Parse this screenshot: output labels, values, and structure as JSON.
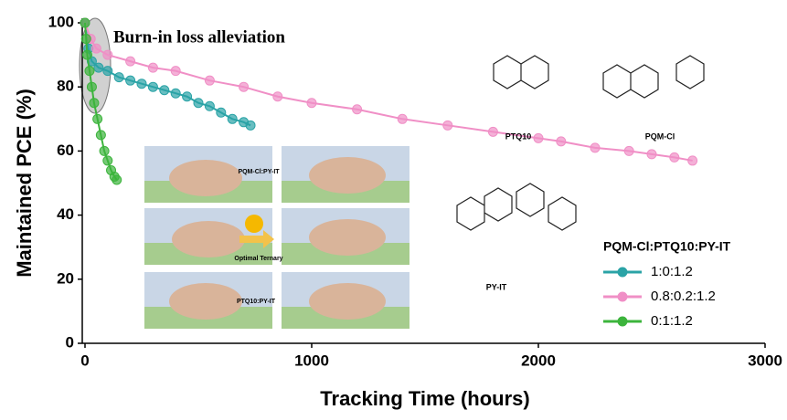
{
  "chart_data": {
    "type": "line",
    "xlabel": "Tracking Time (hours)",
    "ylabel": "Maintained PCE (%)",
    "xlim": [
      0,
      3000
    ],
    "xticks": [
      0,
      1000,
      2000,
      3000
    ],
    "ylim": [
      0,
      100
    ],
    "yticks": [
      0,
      20,
      40,
      60,
      80,
      100
    ],
    "legend_title": "PQM-Cl:PTQ10:PY-IT",
    "legend_position": "lower right",
    "annotations": [
      "Burn-in loss alleviation",
      "PQM-Cl:PY-IT",
      "Optimal Ternary",
      "PTQ10:PY-IT",
      "PTQ10",
      "PQM-Cl",
      "PY-IT"
    ],
    "series": [
      {
        "name": "1:0:1.2",
        "color": "#2aa3a6",
        "x": [
          0,
          15,
          30,
          60,
          100,
          150,
          200,
          250,
          300,
          350,
          400,
          450,
          500,
          550,
          600,
          650,
          700,
          730
        ],
        "values": [
          100,
          92,
          88,
          86,
          85,
          83,
          82,
          81,
          80,
          79,
          78,
          77,
          75,
          74,
          72,
          70,
          69,
          68
        ]
      },
      {
        "name": "0.8:0.2:1.2",
        "color": "#f08fc6",
        "x": [
          0,
          25,
          50,
          100,
          200,
          300,
          400,
          550,
          700,
          850,
          1000,
          1200,
          1400,
          1600,
          1800,
          2000,
          2100,
          2250,
          2400,
          2500,
          2600,
          2680
        ],
        "values": [
          100,
          95,
          92,
          90,
          88,
          86,
          85,
          82,
          80,
          77,
          75,
          73,
          70,
          68,
          66,
          64,
          63,
          61,
          60,
          59,
          58,
          57
        ]
      },
      {
        "name": "0:1:1.2",
        "color": "#3cb43c",
        "x": [
          0,
          5,
          10,
          20,
          30,
          40,
          55,
          70,
          85,
          100,
          115,
          130,
          140
        ],
        "values": [
          100,
          95,
          90,
          85,
          80,
          75,
          70,
          65,
          60,
          57,
          54,
          52,
          51
        ]
      }
    ]
  }
}
